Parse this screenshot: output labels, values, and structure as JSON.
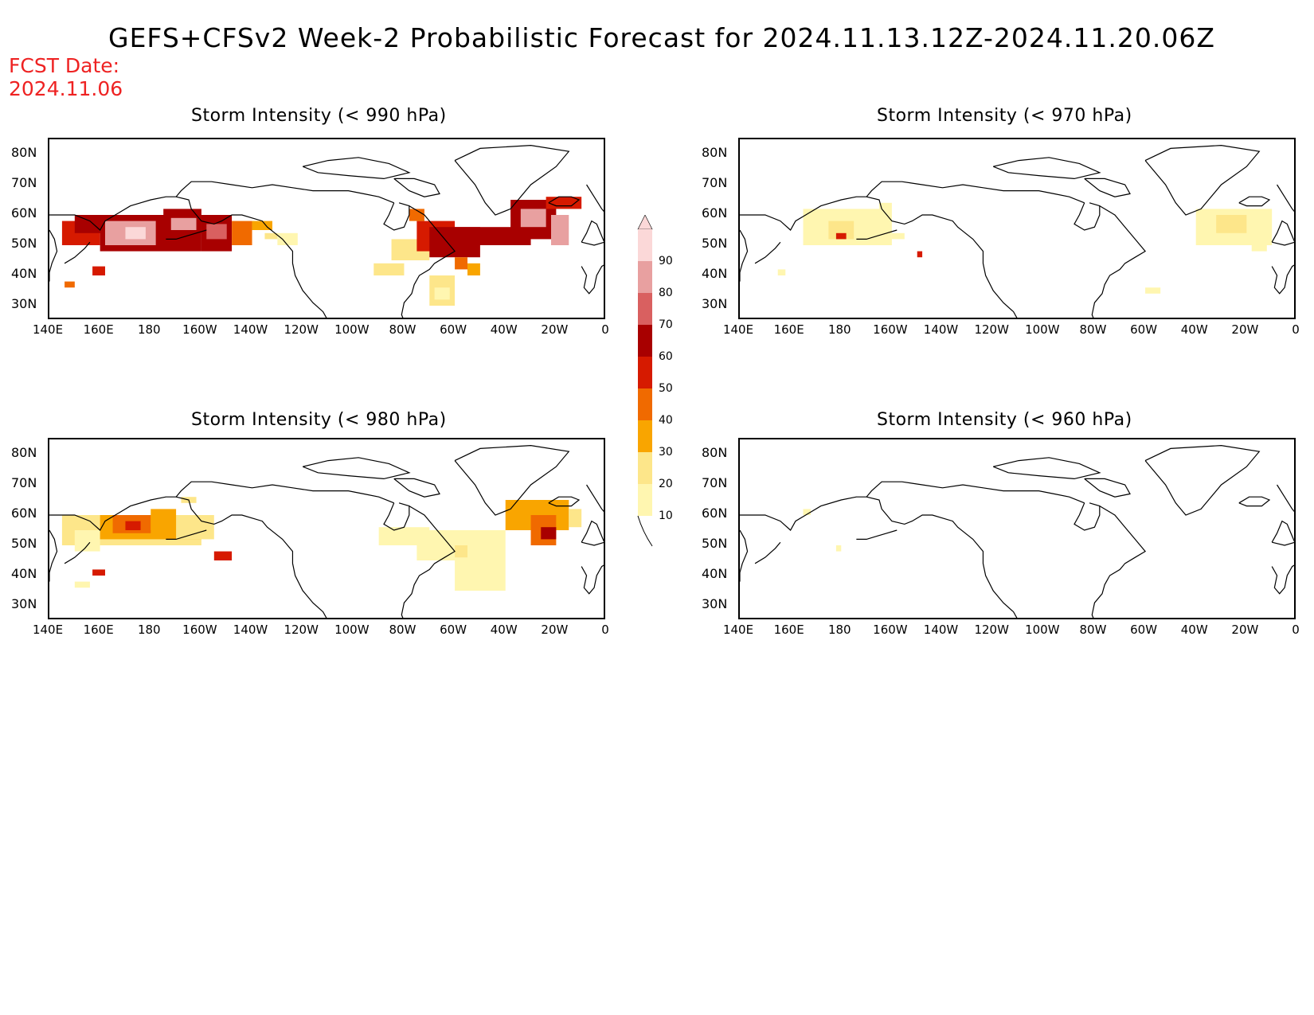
{
  "title": "GEFS+CFSv2 Week-2 Probabilistic Forecast for 2024.11.13.12Z-2024.11.20.06Z",
  "fcst_date": "FCST Date:\n2024.11.06",
  "colors": {
    "fcst_date": "#ee2222",
    "levels": [
      "#fff6b0",
      "#fde68a",
      "#f9a500",
      "#f06a00",
      "#d61a00",
      "#a80000",
      "#d96060",
      "#e8a0a0",
      "#fbd8d8"
    ]
  },
  "colorbar": {
    "ticks": [
      "10",
      "20",
      "30",
      "40",
      "50",
      "60",
      "70",
      "80",
      "90"
    ]
  },
  "lat_labels": [
    "80N",
    "70N",
    "60N",
    "50N",
    "40N",
    "30N"
  ],
  "lon_labels": [
    "140E",
    "160E",
    "180",
    "160W",
    "140W",
    "120W",
    "100W",
    "80W",
    "60W",
    "40W",
    "20W",
    "0"
  ],
  "panels": [
    {
      "id": "p990",
      "title": "Storm Intensity (< 990 hPa)"
    },
    {
      "id": "p970",
      "title": "Storm Intensity (< 970 hPa)"
    },
    {
      "id": "p980",
      "title": "Storm Intensity (< 980 hPa)"
    },
    {
      "id": "p960",
      "title": "Storm Intensity (< 960 hPa)"
    }
  ]
}
